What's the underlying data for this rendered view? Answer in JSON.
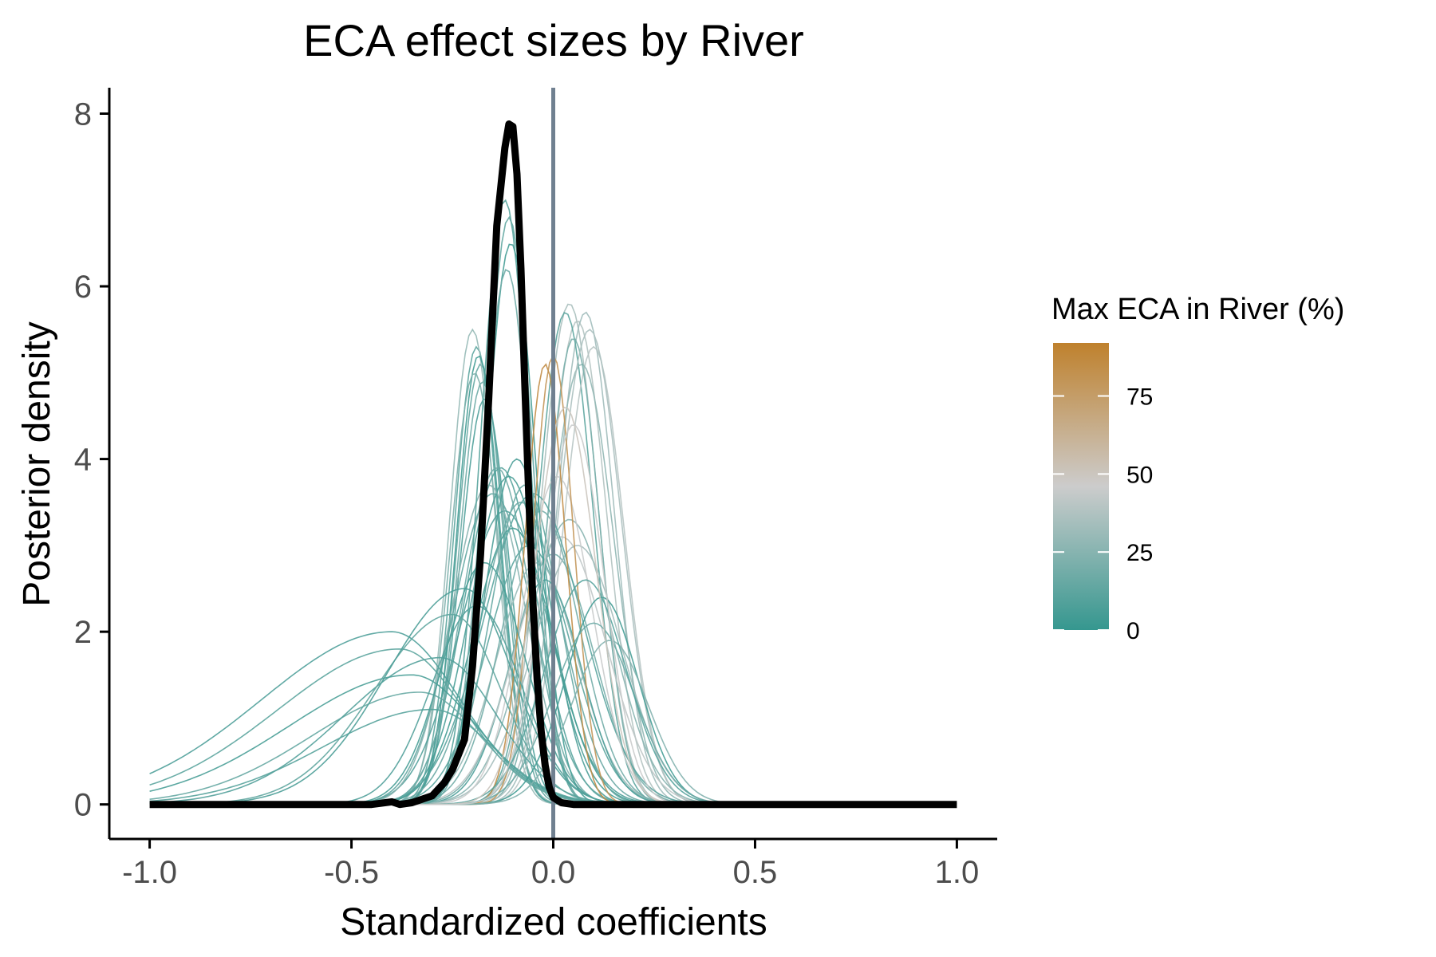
{
  "chart_data": {
    "type": "line",
    "title": "ECA effect sizes by River",
    "xlabel": "Standardized coefficients",
    "ylabel": "Posterior density",
    "xlim": [
      -1.1,
      1.1
    ],
    "ylim": [
      -0.4,
      8.3
    ],
    "x_ticks": [
      -1.0,
      -0.5,
      0.0,
      0.5,
      1.0
    ],
    "x_tick_labels": [
      "-1.0",
      "-0.5",
      "0.0",
      "0.5",
      "1.0"
    ],
    "y_ticks": [
      0,
      2,
      4,
      6,
      8
    ],
    "y_tick_labels": [
      "0",
      "2",
      "4",
      "6",
      "8"
    ],
    "grid": false,
    "reference_line": {
      "x": 0.0,
      "color": "#708090"
    },
    "legend": {
      "title": "Max ECA in River (%)",
      "placement": "right",
      "type": "colorbar",
      "min": 0,
      "max": 92,
      "ticks": [
        0,
        25,
        50,
        75
      ],
      "tick_labels": [
        "0",
        "25",
        "50",
        "75"
      ],
      "colors": {
        "low": "#35978F",
        "mid": "#CCCCCC",
        "high": "#BF812D"
      }
    },
    "series": [
      {
        "role": "overall",
        "color": "#000000",
        "x": [
          -1.0,
          -0.45,
          -0.4,
          -0.38,
          -0.35,
          -0.3,
          -0.27,
          -0.25,
          -0.22,
          -0.2,
          -0.18,
          -0.16,
          -0.14,
          -0.12,
          -0.11,
          -0.1,
          -0.09,
          -0.08,
          -0.07,
          -0.06,
          -0.05,
          -0.04,
          -0.03,
          -0.02,
          -0.01,
          0.0,
          0.02,
          0.05,
          0.1,
          1.0
        ],
        "y": [
          0,
          0,
          0.03,
          0.0,
          0.02,
          0.1,
          0.25,
          0.4,
          0.75,
          1.6,
          2.9,
          4.7,
          6.7,
          7.6,
          7.88,
          7.85,
          7.3,
          6.2,
          4.8,
          3.5,
          2.3,
          1.45,
          0.85,
          0.45,
          0.2,
          0.08,
          0.02,
          0.0,
          0,
          0
        ]
      },
      {
        "role": "river",
        "center": -0.19,
        "sd": 0.055,
        "peak": 5.3,
        "eca": 12
      },
      {
        "role": "river",
        "center": -0.18,
        "sd": 0.057,
        "peak": 5.1,
        "eca": 15
      },
      {
        "role": "river",
        "center": -0.175,
        "sd": 0.058,
        "peak": 4.9,
        "eca": 18
      },
      {
        "role": "river",
        "center": -0.2,
        "sd": 0.056,
        "peak": 5.5,
        "eca": 30
      },
      {
        "role": "river",
        "center": -0.17,
        "sd": 0.06,
        "peak": 4.7,
        "eca": 8
      },
      {
        "role": "river",
        "center": -0.185,
        "sd": 0.054,
        "peak": 5.2,
        "eca": 5
      },
      {
        "role": "river",
        "center": -0.195,
        "sd": 0.059,
        "peak": 5.0,
        "eca": 22
      },
      {
        "role": "river",
        "center": 0.04,
        "sd": 0.07,
        "peak": 5.8,
        "eca": 35
      },
      {
        "role": "river",
        "center": 0.06,
        "sd": 0.072,
        "peak": 5.6,
        "eca": 38
      },
      {
        "role": "river",
        "center": 0.08,
        "sd": 0.07,
        "peak": 5.7,
        "eca": 33
      },
      {
        "role": "river",
        "center": 0.03,
        "sd": 0.068,
        "peak": 5.7,
        "eca": 12
      },
      {
        "role": "river",
        "center": 0.1,
        "sd": 0.075,
        "peak": 5.3,
        "eca": 40
      },
      {
        "role": "river",
        "center": 0.07,
        "sd": 0.08,
        "peak": 5.1,
        "eca": 28
      },
      {
        "role": "river",
        "center": 0.05,
        "sd": 0.065,
        "peak": 5.4,
        "eca": 20
      },
      {
        "role": "river",
        "center": 0.09,
        "sd": 0.078,
        "peak": 5.5,
        "eca": 36
      },
      {
        "role": "river",
        "center": -0.13,
        "sd": 0.09,
        "peak": 3.9,
        "eca": 10
      },
      {
        "role": "river",
        "center": -0.15,
        "sd": 0.1,
        "peak": 3.6,
        "eca": 14
      },
      {
        "role": "river",
        "center": -0.11,
        "sd": 0.095,
        "peak": 3.8,
        "eca": 6
      },
      {
        "role": "river",
        "center": -0.14,
        "sd": 0.085,
        "peak": 3.9,
        "eca": 18
      },
      {
        "role": "river",
        "center": -0.12,
        "sd": 0.11,
        "peak": 3.4,
        "eca": 9
      },
      {
        "role": "river",
        "center": -0.16,
        "sd": 0.092,
        "peak": 3.7,
        "eca": 25
      },
      {
        "role": "river",
        "center": -0.1,
        "sd": 0.1,
        "peak": 3.2,
        "eca": 4
      },
      {
        "role": "river",
        "center": -0.08,
        "sd": 0.1,
        "peak": 3.5,
        "eca": 16
      },
      {
        "role": "river",
        "center": -0.06,
        "sd": 0.105,
        "peak": 3.0,
        "eca": 12
      },
      {
        "role": "river",
        "center": -0.04,
        "sd": 0.1,
        "peak": 2.8,
        "eca": 30
      },
      {
        "role": "river",
        "center": -0.02,
        "sd": 0.09,
        "peak": 2.6,
        "eca": 8
      },
      {
        "role": "river",
        "center": 0.0,
        "sd": 0.1,
        "peak": 2.9,
        "eca": 20
      },
      {
        "role": "river",
        "center": 0.02,
        "sd": 0.11,
        "peak": 3.1,
        "eca": 42
      },
      {
        "role": "river",
        "center": 0.04,
        "sd": 0.105,
        "peak": 3.3,
        "eca": 26
      },
      {
        "role": "river",
        "center": 0.06,
        "sd": 0.11,
        "peak": 3.0,
        "eca": 34
      },
      {
        "role": "river",
        "center": -0.05,
        "sd": 0.12,
        "peak": 3.6,
        "eca": 11
      },
      {
        "role": "river",
        "center": -0.09,
        "sd": 0.08,
        "peak": 4.0,
        "eca": 7
      },
      {
        "role": "river",
        "center": -0.07,
        "sd": 0.085,
        "peak": 3.7,
        "eca": 15
      },
      {
        "role": "river",
        "center": -0.03,
        "sd": 0.095,
        "peak": 3.4,
        "eca": 19
      },
      {
        "role": "river",
        "center": 0.01,
        "sd": 0.085,
        "peak": 3.8,
        "eca": 45
      },
      {
        "role": "river",
        "center": -0.12,
        "sd": 0.06,
        "peak": 7.0,
        "eca": 10
      },
      {
        "role": "river",
        "center": -0.11,
        "sd": 0.058,
        "peak": 6.8,
        "eca": 14
      },
      {
        "role": "river",
        "center": -0.105,
        "sd": 0.062,
        "peak": 6.5,
        "eca": 5
      },
      {
        "role": "river",
        "center": -0.115,
        "sd": 0.06,
        "peak": 6.2,
        "eca": 18
      },
      {
        "role": "river",
        "center": -0.02,
        "sd": 0.05,
        "peak": 5.1,
        "eca": 85
      },
      {
        "role": "river",
        "center": 0.0,
        "sd": 0.05,
        "peak": 5.2,
        "eca": 80
      },
      {
        "role": "river",
        "center": -0.4,
        "sd": 0.17,
        "peak": 2.0,
        "eca": 8,
        "skew": 0.9
      },
      {
        "role": "river",
        "center": -0.38,
        "sd": 0.16,
        "peak": 1.8,
        "eca": 12,
        "skew": 0.9
      },
      {
        "role": "river",
        "center": -0.35,
        "sd": 0.16,
        "peak": 1.5,
        "eca": 6,
        "skew": 0.9
      },
      {
        "role": "river",
        "center": -0.33,
        "sd": 0.15,
        "peak": 1.3,
        "eca": 15,
        "skew": 0.8
      },
      {
        "role": "river",
        "center": -0.3,
        "sd": 0.15,
        "peak": 1.1,
        "eca": 10,
        "skew": 0.8
      },
      {
        "role": "river",
        "center": -0.28,
        "sd": 0.14,
        "peak": 1.7,
        "eca": 9,
        "skew": 0.7
      },
      {
        "role": "river",
        "center": -0.25,
        "sd": 0.12,
        "peak": 2.2,
        "eca": 13,
        "skew": 0.6
      },
      {
        "role": "river",
        "center": -0.22,
        "sd": 0.12,
        "peak": 2.5,
        "eca": 7,
        "skew": 0.6
      },
      {
        "role": "river",
        "center": 0.12,
        "sd": 0.09,
        "peak": 2.4,
        "eca": 5
      },
      {
        "role": "river",
        "center": 0.1,
        "sd": 0.1,
        "peak": 2.1,
        "eca": 17
      },
      {
        "role": "river",
        "center": 0.14,
        "sd": 0.095,
        "peak": 1.9,
        "eca": 24
      },
      {
        "role": "river",
        "center": 0.08,
        "sd": 0.1,
        "peak": 2.6,
        "eca": 11
      },
      {
        "role": "river",
        "center": -0.17,
        "sd": 0.1,
        "peak": 2.8,
        "eca": 6
      },
      {
        "role": "river",
        "center": -0.19,
        "sd": 0.11,
        "peak": 2.3,
        "eca": 9
      },
      {
        "role": "river",
        "center": 0.03,
        "sd": 0.075,
        "peak": 4.6,
        "eca": 50
      },
      {
        "role": "river",
        "center": 0.05,
        "sd": 0.075,
        "peak": 4.4,
        "eca": 45
      }
    ]
  }
}
